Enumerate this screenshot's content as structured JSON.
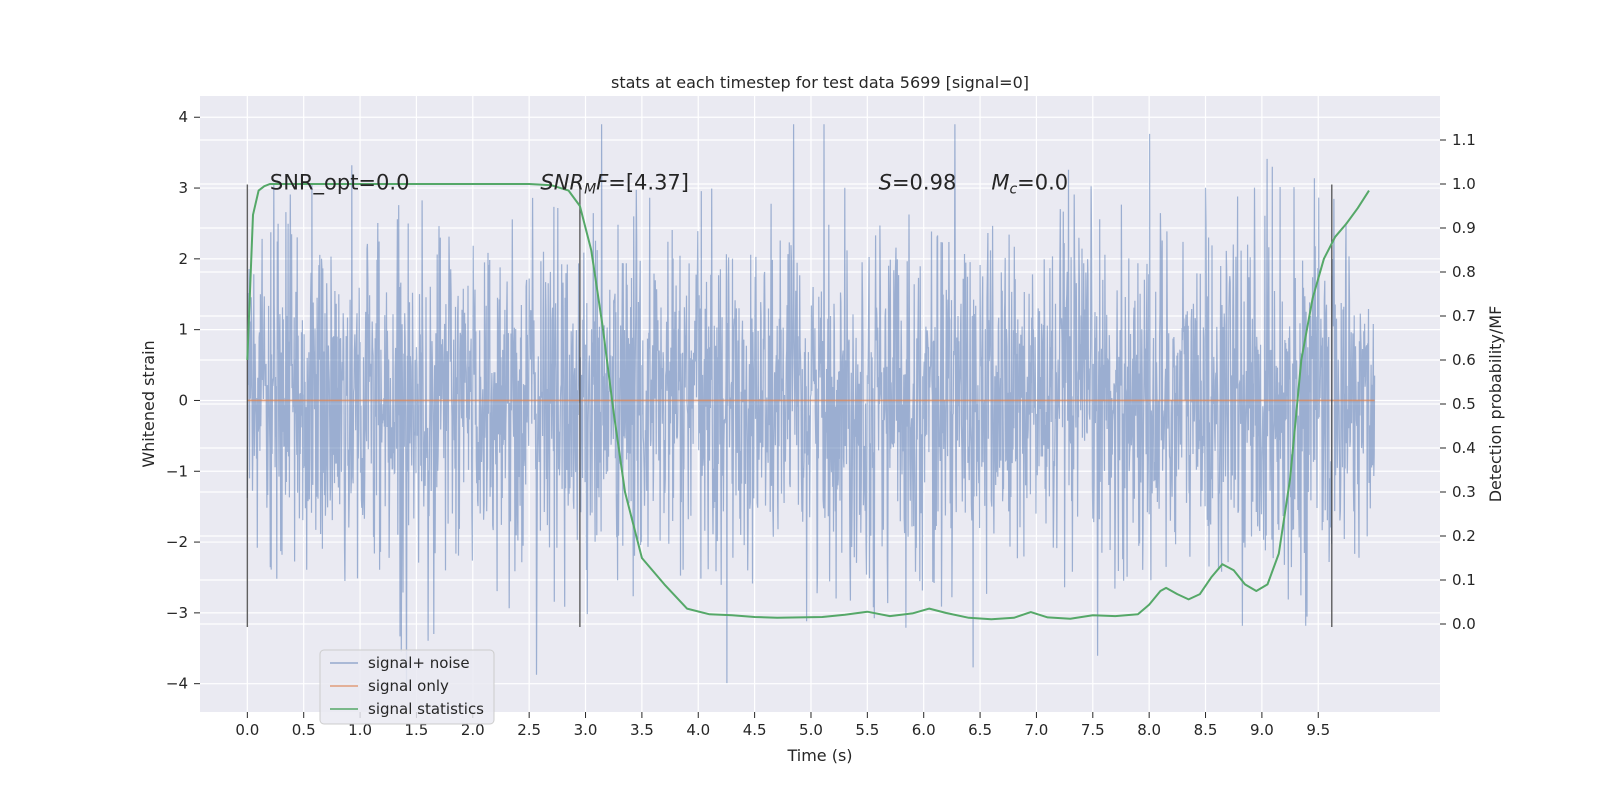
{
  "chart_data": {
    "type": "line",
    "title": "stats at each timestep for test data 5699 [signal=0]",
    "xlabel": "Time (s)",
    "ylabel": "Whitened strain",
    "ylabel_right": "Detection probability/MF",
    "xlim": [
      -0.42,
      10.58
    ],
    "ylim": [
      -4.4,
      4.3
    ],
    "ylim_right": [
      -0.2,
      1.2
    ],
    "x_ticks": [
      0.0,
      0.5,
      1.0,
      1.5,
      2.0,
      2.5,
      3.0,
      3.5,
      4.0,
      4.5,
      5.0,
      5.5,
      6.0,
      6.5,
      7.0,
      7.5,
      8.0,
      8.5,
      9.0,
      9.5
    ],
    "x_tick_labels": [
      "0.0",
      "0.5",
      "1.0",
      "1.5",
      "2.0",
      "2.5",
      "3.0",
      "3.5",
      "4.0",
      "4.5",
      "5.0",
      "5.5",
      "6.0",
      "6.5",
      "7.0",
      "7.5",
      "8.0",
      "8.5",
      "9.0",
      "9.5"
    ],
    "y_ticks": [
      4,
      3,
      2,
      1,
      0,
      -1,
      -2,
      -3,
      -4
    ],
    "y_tick_labels": [
      "4",
      "3",
      "2",
      "1",
      "0",
      "−1",
      "−2",
      "−3",
      "−4"
    ],
    "y_right_ticks": [
      1.1,
      1.0,
      0.9,
      0.8,
      0.7,
      0.6,
      0.5,
      0.4,
      0.3,
      0.2,
      0.1,
      0.0
    ],
    "y_right_tick_labels": [
      "1.1",
      "1.0",
      "0.9",
      "0.8",
      "0.7",
      "0.6",
      "0.5",
      "0.4",
      "0.3",
      "0.2",
      "0.1",
      "0.0"
    ],
    "grid": true,
    "legend_position": "lower-left",
    "series": [
      {
        "name": "signal+ noise",
        "color": "#4c72b0",
        "kind": "noise",
        "x_range": [
          0.0,
          10.0
        ],
        "typical_abs": 1.2,
        "max": 3.9,
        "min": -4.05
      },
      {
        "name": "signal only",
        "color": "#dd8452",
        "kind": "line",
        "x": [
          0.0,
          10.0
        ],
        "y": [
          0.0,
          0.0
        ]
      },
      {
        "name": "signal statistics",
        "color": "#55a868",
        "kind": "line",
        "axis": "right",
        "x": [
          0.0,
          0.05,
          0.1,
          0.15,
          0.2,
          0.3,
          0.5,
          1.0,
          1.5,
          2.0,
          2.5,
          2.7,
          2.85,
          2.95,
          3.05,
          3.15,
          3.25,
          3.35,
          3.5,
          3.7,
          3.9,
          4.1,
          4.3,
          4.5,
          4.7,
          4.9,
          5.1,
          5.3,
          5.5,
          5.7,
          5.9,
          6.05,
          6.2,
          6.4,
          6.6,
          6.8,
          6.95,
          7.1,
          7.3,
          7.5,
          7.7,
          7.9,
          8.0,
          8.1,
          8.15,
          8.25,
          8.35,
          8.45,
          8.55,
          8.65,
          8.75,
          8.85,
          8.95,
          9.05,
          9.15,
          9.25,
          9.35,
          9.45,
          9.55,
          9.65,
          9.75,
          9.85,
          9.95
        ],
        "y": [
          0.6,
          0.93,
          0.985,
          0.995,
          1.0,
          1.0,
          1.0,
          1.0,
          1.0,
          1.0,
          1.0,
          0.997,
          0.985,
          0.95,
          0.85,
          0.68,
          0.48,
          0.3,
          0.15,
          0.09,
          0.035,
          0.022,
          0.02,
          0.016,
          0.014,
          0.015,
          0.016,
          0.021,
          0.028,
          0.018,
          0.024,
          0.035,
          0.025,
          0.014,
          0.011,
          0.014,
          0.027,
          0.015,
          0.012,
          0.02,
          0.018,
          0.022,
          0.044,
          0.075,
          0.082,
          0.068,
          0.056,
          0.068,
          0.106,
          0.136,
          0.122,
          0.09,
          0.075,
          0.09,
          0.16,
          0.33,
          0.6,
          0.74,
          0.83,
          0.88,
          0.91,
          0.945,
          0.985
        ]
      }
    ],
    "vertical_markers": [
      {
        "x": 0.0,
        "y_range": [
          -3.2,
          3.05
        ]
      },
      {
        "x": 2.95,
        "y_range": [
          -3.2,
          3.05
        ]
      },
      {
        "x": 9.62,
        "y_range": [
          -3.2,
          3.05
        ]
      }
    ],
    "annotations": [
      {
        "x": 0.2,
        "y": 2.98,
        "parts": [
          {
            "t": "SNR_opt=0.0",
            "it": false
          }
        ]
      },
      {
        "x": 2.6,
        "y": 2.98,
        "parts": [
          {
            "t": "SNR",
            "it": true
          },
          {
            "t": "M",
            "it": true,
            "sub": true
          },
          {
            "t": "F",
            "it": true
          },
          {
            "t": "=[4.37]",
            "it": false
          }
        ]
      },
      {
        "x": 5.6,
        "y": 2.98,
        "parts": [
          {
            "t": "S",
            "it": true
          },
          {
            "t": "=0.98",
            "it": false
          }
        ]
      },
      {
        "x": 6.6,
        "y": 2.98,
        "parts": [
          {
            "t": "M",
            "it": true
          },
          {
            "t": "c",
            "it": true,
            "sub": true
          },
          {
            "t": "=0.0",
            "it": false
          }
        ]
      }
    ]
  }
}
